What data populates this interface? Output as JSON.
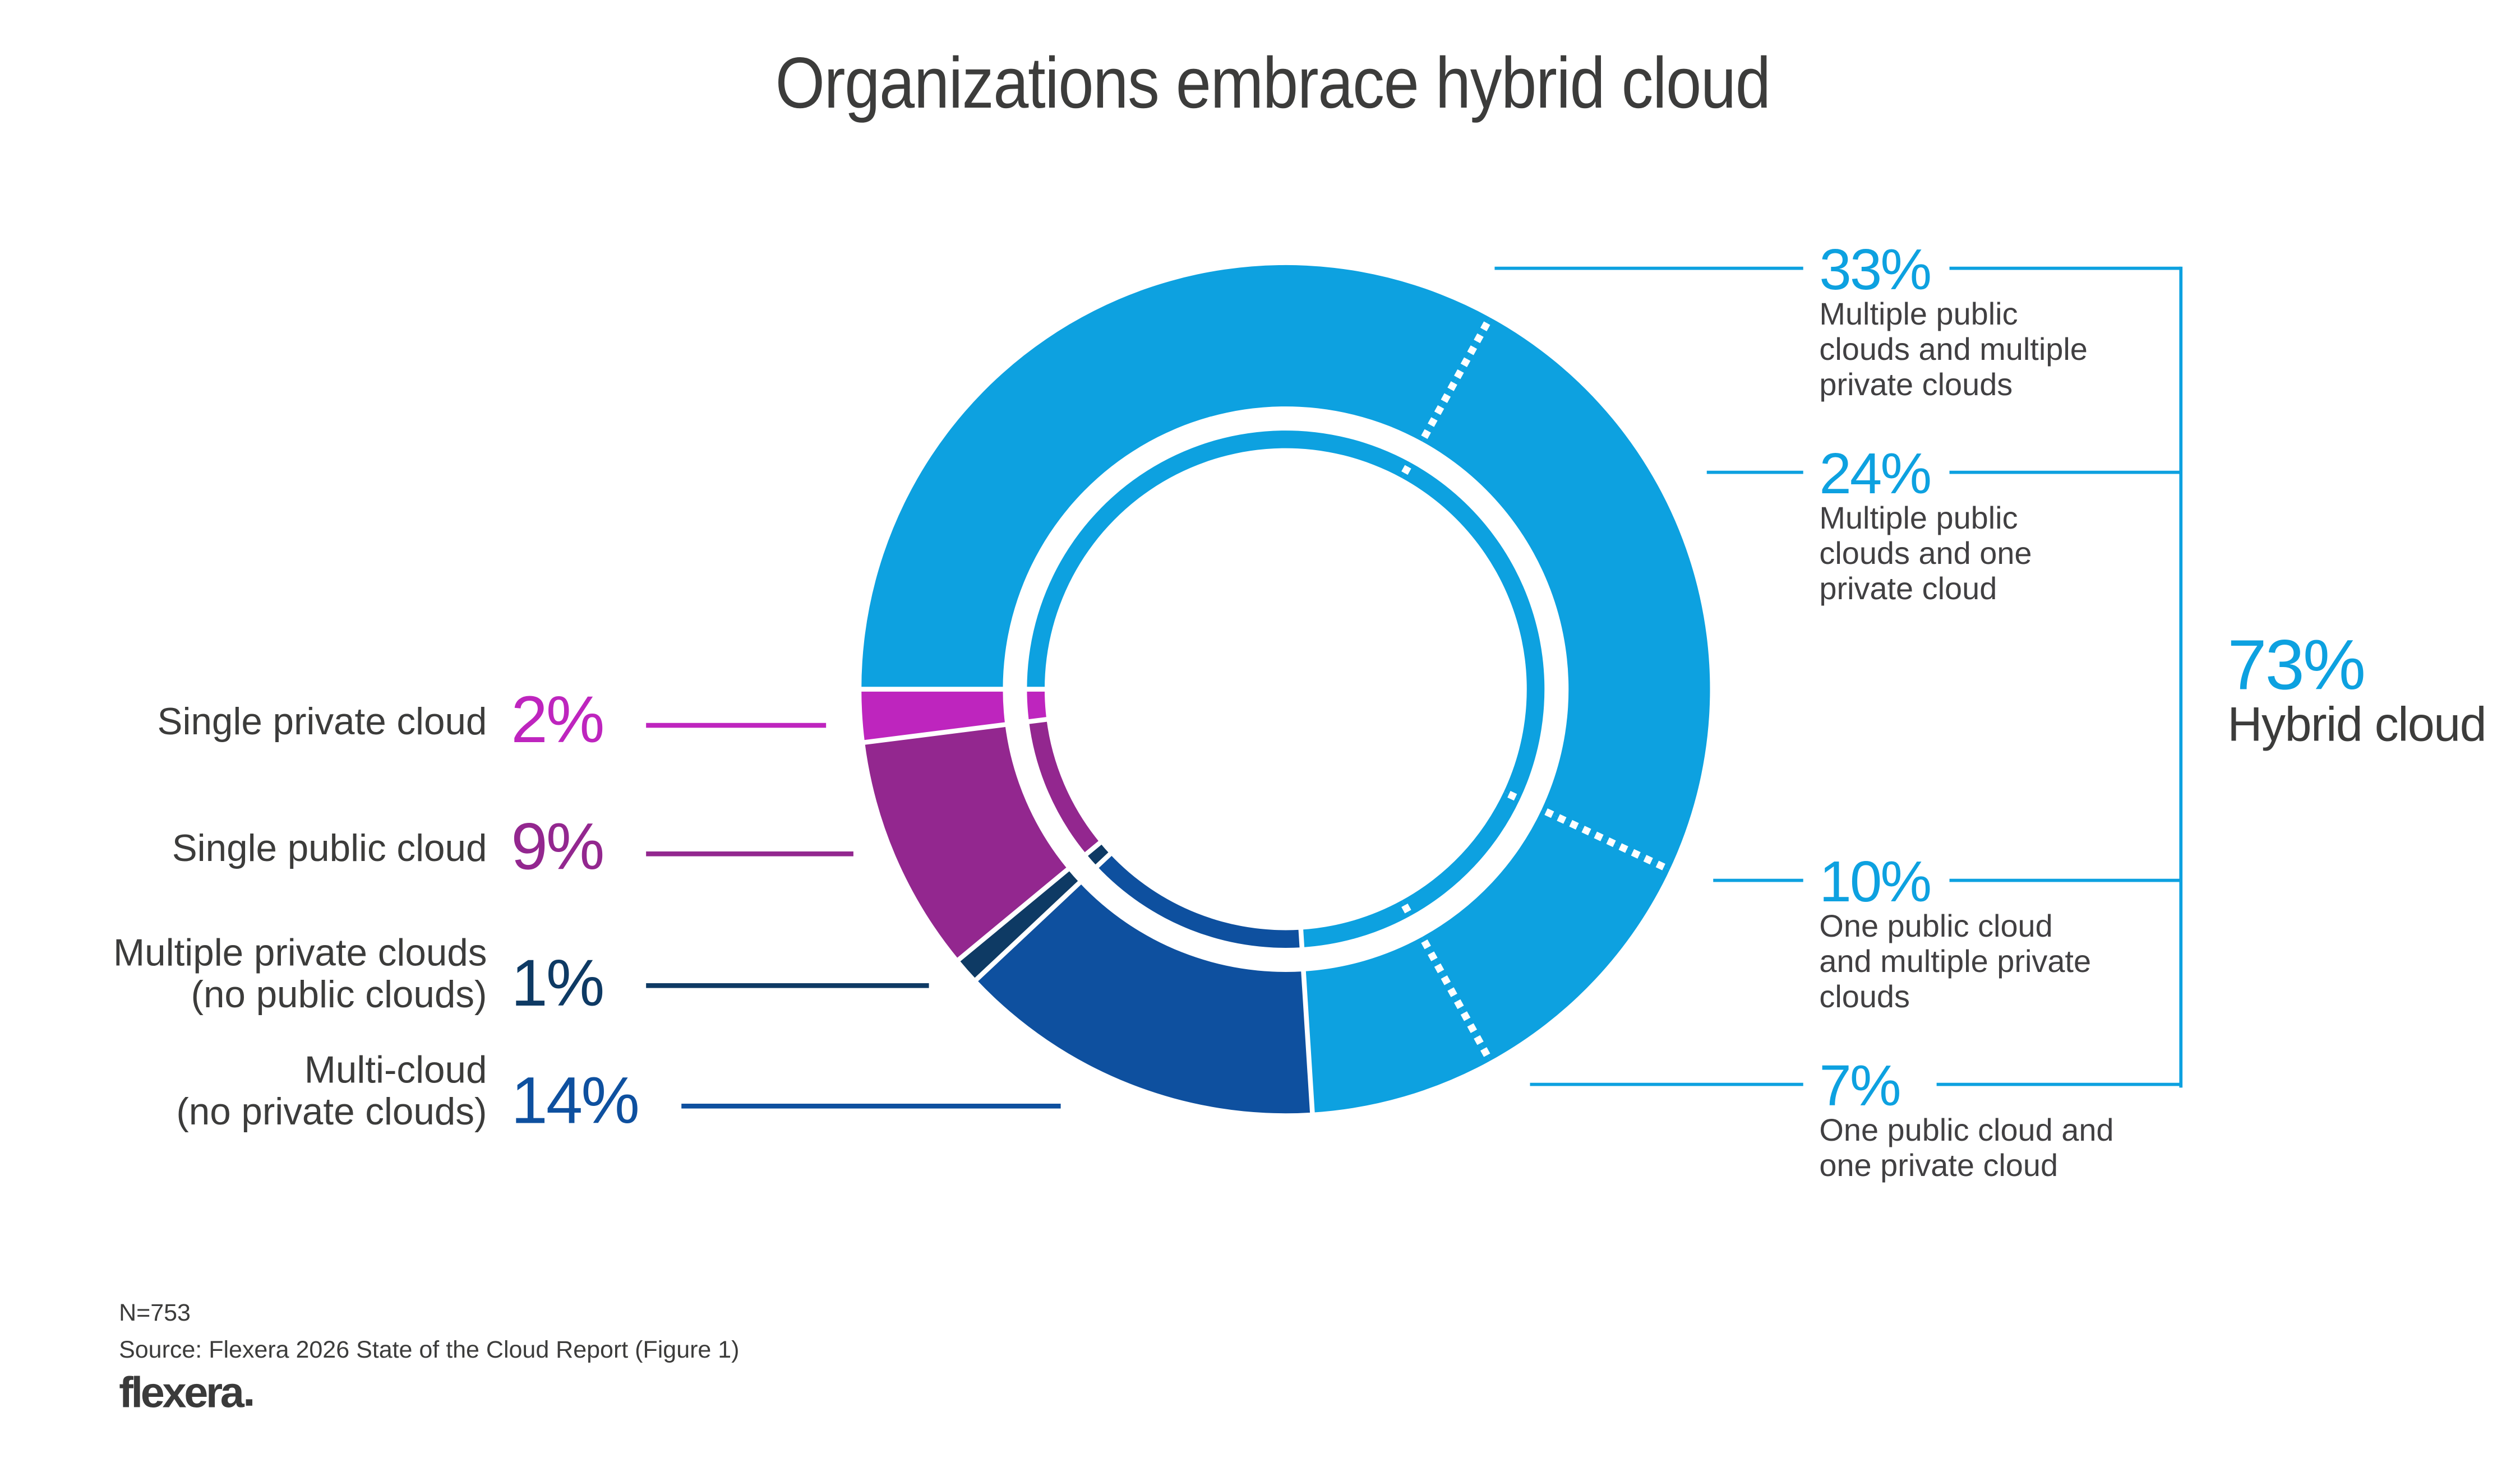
{
  "title": "Organizations embrace hybrid cloud",
  "colors": {
    "accent_blue": "#0DA1E0",
    "medium_blue": "#0E509F",
    "navy": "#0E3A64",
    "purple": "#93278F",
    "magenta": "#BE25BE",
    "title_text": "#3C3C3B",
    "label_text": "#414042"
  },
  "chart_data": {
    "type": "pie",
    "subtype": "double-ring-donut",
    "title": "Organizations embrace hybrid cloud",
    "units": "percent",
    "start_angle_deg_clockwise_from_top": 270,
    "direction": "clockwise",
    "legend_position": "callout-labels",
    "segments": [
      {
        "label": "Multiple public clouds and multiple private clouds",
        "value": 33,
        "group": "hybrid",
        "color": "#0DA1E0"
      },
      {
        "label": "Multiple public clouds and one private cloud",
        "value": 24,
        "group": "hybrid",
        "color": "#0DA1E0"
      },
      {
        "label": "One public cloud and multiple private clouds",
        "value": 10,
        "group": "hybrid",
        "color": "#0DA1E0"
      },
      {
        "label": "One public cloud and one private cloud",
        "value": 7,
        "group": "hybrid",
        "color": "#0DA1E0"
      },
      {
        "label": "Multi-cloud (no private clouds)",
        "value": 14,
        "group": "non-hybrid",
        "color": "#0E509F"
      },
      {
        "label": "Multiple private clouds (no public clouds)",
        "value": 1,
        "group": "non-hybrid",
        "color": "#0E3A64"
      },
      {
        "label": "Single public cloud",
        "value": 9,
        "group": "non-hybrid",
        "color": "#93278F"
      },
      {
        "label": "Single private cloud",
        "value": 2,
        "group": "non-hybrid",
        "color": "#BE25BE"
      }
    ],
    "callout": {
      "label": "Hybrid cloud",
      "value": 73,
      "display": "73%",
      "includes": [
        33,
        24,
        10,
        7
      ]
    }
  },
  "right_labels": [
    {
      "pct": "33%",
      "lines": [
        "Multiple public",
        "clouds and multiple",
        "private clouds"
      ]
    },
    {
      "pct": "24%",
      "lines": [
        "Multiple public",
        "clouds and one",
        "private cloud"
      ]
    },
    {
      "pct": "10%",
      "lines": [
        "One public cloud",
        "and multiple private",
        "clouds"
      ]
    },
    {
      "pct": "7%",
      "lines": [
        "One public cloud and",
        "one private cloud"
      ]
    }
  ],
  "hybrid_callout": {
    "pct": "73%",
    "label": "Hybrid cloud"
  },
  "left_labels": [
    {
      "pct": "2%",
      "color": "#BE25BE",
      "lines": [
        "Single private cloud"
      ]
    },
    {
      "pct": "9%",
      "color": "#93278F",
      "lines": [
        "Single public cloud"
      ]
    },
    {
      "pct": "1%",
      "color": "#0E3A64",
      "lines": [
        "Multiple private clouds",
        "(no public clouds)"
      ]
    },
    {
      "pct": "14%",
      "color": "#0E509F",
      "lines": [
        "Multi-cloud",
        "(no private clouds)"
      ]
    }
  ],
  "footer": {
    "n": "N=753",
    "source": "Source: Flexera 2026 State of the Cloud Report (Figure 1)",
    "logo": "flexera"
  }
}
